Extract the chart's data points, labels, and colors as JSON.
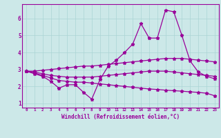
{
  "title": "",
  "xlabel": "Windchill (Refroidissement éolien,°C)",
  "ylabel": "",
  "bg_color": "#cce8e8",
  "line_color": "#990099",
  "grid_color": "#aad4d4",
  "x_values": [
    0,
    1,
    2,
    3,
    4,
    5,
    6,
    7,
    8,
    9,
    10,
    11,
    12,
    13,
    14,
    15,
    16,
    17,
    18,
    19,
    20,
    21,
    22,
    23
  ],
  "line1": [
    2.9,
    2.75,
    2.6,
    2.3,
    1.9,
    2.1,
    2.1,
    1.65,
    1.25,
    2.4,
    3.2,
    3.55,
    4.0,
    4.5,
    5.7,
    4.85,
    4.85,
    6.5,
    6.4,
    5.0,
    3.5,
    2.85,
    2.6,
    2.45
  ],
  "line2": [
    2.9,
    2.9,
    2.95,
    3.0,
    3.05,
    3.1,
    3.15,
    3.2,
    3.2,
    3.25,
    3.3,
    3.35,
    3.4,
    3.45,
    3.5,
    3.55,
    3.6,
    3.65,
    3.65,
    3.65,
    3.6,
    3.55,
    3.5,
    3.45
  ],
  "line3": [
    2.9,
    2.85,
    2.75,
    2.65,
    2.6,
    2.55,
    2.55,
    2.55,
    2.55,
    2.6,
    2.65,
    2.7,
    2.75,
    2.8,
    2.85,
    2.9,
    2.9,
    2.9,
    2.85,
    2.8,
    2.75,
    2.7,
    2.65,
    2.6
  ],
  "line4": [
    2.9,
    2.8,
    2.65,
    2.5,
    2.35,
    2.3,
    2.25,
    2.25,
    2.2,
    2.15,
    2.1,
    2.05,
    2.0,
    1.95,
    1.9,
    1.85,
    1.82,
    1.78,
    1.75,
    1.72,
    1.68,
    1.65,
    1.6,
    1.45
  ],
  "ylim": [
    0.75,
    6.85
  ],
  "yticks": [
    1,
    2,
    3,
    4,
    5,
    6
  ],
  "xticks": [
    0,
    1,
    2,
    3,
    4,
    5,
    6,
    7,
    8,
    9,
    10,
    11,
    12,
    13,
    14,
    15,
    16,
    17,
    18,
    19,
    20,
    21,
    22,
    23
  ],
  "figsize": [
    3.2,
    2.0
  ],
  "dpi": 100
}
